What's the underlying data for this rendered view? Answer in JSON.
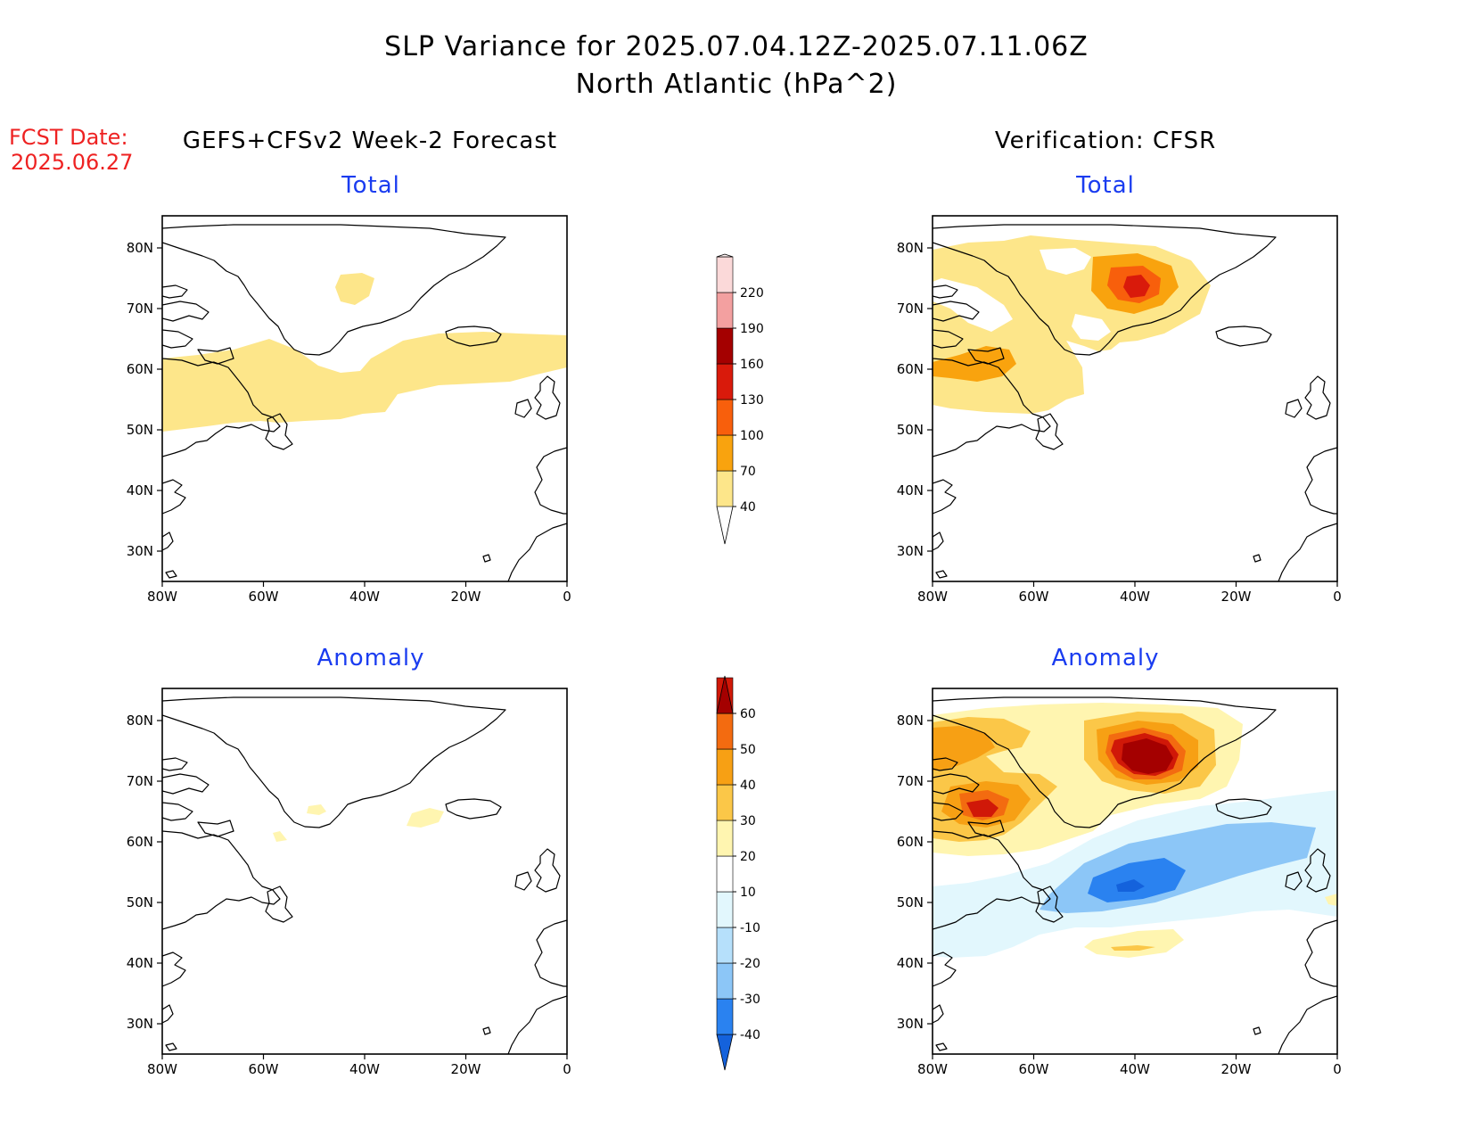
{
  "title_line1": "SLP Variance for 2025.07.04.12Z-2025.07.11.06Z",
  "title_line2": "North Atlantic (hPa^2)",
  "fcst_label": "FCST Date:",
  "fcst_date": "2025.06.27",
  "left_header": "GEFS+CFSv2 Week-2 Forecast",
  "right_header": "Verification: CFSR",
  "panels": {
    "fcst_total": "Total",
    "fcst_anom": "Anomaly",
    "ver_total": "Total",
    "ver_anom": "Anomaly"
  },
  "lat_ticks": [
    "80N",
    "70N",
    "60N",
    "50N",
    "40N",
    "30N"
  ],
  "lon_ticks": [
    "80W",
    "60W",
    "40W",
    "20W",
    "0"
  ],
  "total_colorbar": {
    "labels": [
      "40",
      "70",
      "100",
      "130",
      "160",
      "190",
      "220"
    ],
    "colors": [
      "#fde68a",
      "#f9a30e",
      "#f85f0c",
      "#d91a0b",
      "#a40000",
      "#f3a0a0",
      "#fbd9d9",
      "#fff2f2"
    ]
  },
  "anomaly_colorbar": {
    "labels": [
      "-40",
      "-30",
      "-20",
      "-10",
      "10",
      "20",
      "30",
      "40",
      "50",
      "60"
    ],
    "colors": [
      "#1462dc",
      "#2a82f0",
      "#8cc6f7",
      "#b6e0fb",
      "#e2f7fd",
      "#ffffff",
      "#fff5b0",
      "#fbc748",
      "#f7a014",
      "#f36b10",
      "#d01808",
      "#a40000"
    ]
  },
  "icons": [
    "north-atlantic-coastline-map"
  ]
}
